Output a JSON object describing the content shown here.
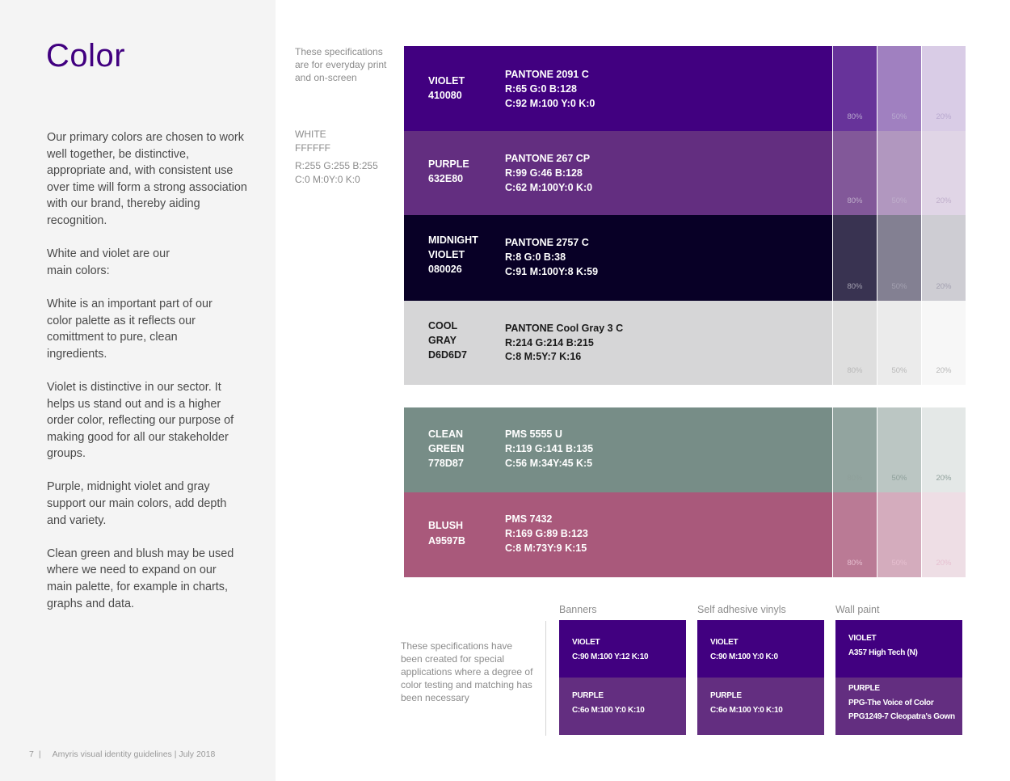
{
  "page": {
    "title": "Color",
    "paragraphs": [
      "Our primary colors are chosen to work well together, be distinctive, appropriate and, with consistent use over time will form a strong association with our brand, thereby aiding recognition.",
      "White and violet are our main colors:",
      "White is an important part of our color palette as it reflects our comittment to pure, clean ingredients.",
      "Violet is distinctive in our sector. It helps us stand out and is a higher order color, reflecting our purpose of making good for all our stakeholder groups.",
      "Purple, midnight violet and gray support our main colors, add depth and variety.",
      "Clean green and blush may be used where we need to expand on our main palette, for example in charts, graphs and data."
    ],
    "footer": {
      "page_number": "7",
      "pipe": "|",
      "text": "Amyris visual identity guidelines | July 2018"
    }
  },
  "notes": {
    "top": "These specifications are for everyday print and on-screen",
    "white": {
      "name": "WHITE",
      "hex": "FFFFFF",
      "rgb": "R:255 G:255 B:255",
      "cmyk": "C:0 M:0Y:0 K:0"
    },
    "bottom": "These specifications have been created for special applications where a degree of color testing and matching has been necessary"
  },
  "tint_labels": {
    "t80": "80%",
    "t50": "50%",
    "t20": "20%"
  },
  "swatches": [
    {
      "name1": "VIOLET",
      "name2": "410080",
      "name3": "",
      "pantone": "PANTONE 2091 C",
      "rgb": "R:65 G:0 B:128",
      "cmyk": "C:92 M:100 Y:0 K:0",
      "color": "#410080",
      "tint80": "#67339a",
      "tint50": "#a080c0",
      "tint20": "#d9cce6",
      "text_color": "#ffffff",
      "tint_text": "#b8a8cf"
    },
    {
      "name1": "PURPLE",
      "name2": "632E80",
      "name3": "",
      "pantone": "PANTONE 267 CP",
      "rgb": "R:99 G:46 B:128",
      "cmyk": "C:62 M:100Y:0 K:0",
      "color": "#632e80",
      "tint80": "#825899",
      "tint50": "#b197bf",
      "tint20": "#e0d5e6",
      "text_color": "#ffffff",
      "tint_text": "#bfaecb"
    },
    {
      "name1": "MIDNIGHT",
      "name2": "VIOLET",
      "name3": "080026",
      "pantone": "PANTONE 2757 C",
      "rgb": "R:8 G:0 B:38",
      "cmyk": "C:91 M:100Y:8 K:59",
      "color": "#080026",
      "tint80": "#393351",
      "tint50": "#838092",
      "tint20": "#cecdd3",
      "text_color": "#ffffff",
      "tint_text": "#a3a0b0"
    },
    {
      "name1": "COOL",
      "name2": "GRAY",
      "name3": "D6D6D7",
      "pantone": "PANTONE Cool Gray 3 C",
      "rgb": "R:214 G:214 B:215",
      "cmyk": "C:8 M:5Y:7 K:16",
      "color": "#d6d6d7",
      "tint80": "#dedede",
      "tint50": "#ebebeb",
      "tint20": "#f7f7f7",
      "text_color": "#1a1a1a",
      "tint_text": "#b8b8b8"
    },
    {
      "name1": "CLEAN",
      "name2": "GREEN",
      "name3": "778D87",
      "pantone": "PMS 5555 U",
      "rgb": "R:119 G:141 B:135",
      "cmyk": "C:56 M:34Y:45 K:5",
      "color": "#778d87",
      "tint80": "#92a49f",
      "tint50": "#bbc6c3",
      "tint20": "#e4e8e7",
      "text_color": "#ffffff",
      "tint_text": "#8fa09b"
    },
    {
      "name1": "BLUSH",
      "name2": "A9597B",
      "name3": "",
      "pantone": "PMS 7432",
      "rgb": "R:169 G:89 B:123",
      "cmyk": "C:8 M:73Y:9 K:15",
      "color": "#a9597b",
      "tint80": "#ba7a95",
      "tint50": "#d4acbd",
      "tint20": "#eedee5",
      "text_color": "#ffffff",
      "tint_text": "#e6bfd0"
    }
  ],
  "applications": [
    {
      "header": "Banners",
      "violet_name": "VIOLET",
      "violet_spec": "C:90 M:100 Y:12 K:10",
      "violet_spec2": "",
      "purple_name": "PURPLE",
      "purple_spec": "C:6o M:100 Y:0 K:10",
      "purple_spec2": ""
    },
    {
      "header": "Self adhesive vinyls",
      "violet_name": "VIOLET",
      "violet_spec": "C:90 M:100 Y:0 K:0",
      "violet_spec2": "",
      "purple_name": "PURPLE",
      "purple_spec": "C:6o M:100 Y:0 K:10",
      "purple_spec2": ""
    },
    {
      "header": "Wall paint",
      "violet_name": "VIOLET",
      "violet_spec": "A357 High Tech (N)",
      "violet_spec2": "",
      "purple_name": "PURPLE",
      "purple_spec": "PPG-The Voice of Color",
      "purple_spec2": "PPG1249-7 Cleopatra's Gown"
    }
  ],
  "colors": {
    "violet": "#410080",
    "purple": "#632e80",
    "sidebar_bg": "#f4f4f4"
  }
}
